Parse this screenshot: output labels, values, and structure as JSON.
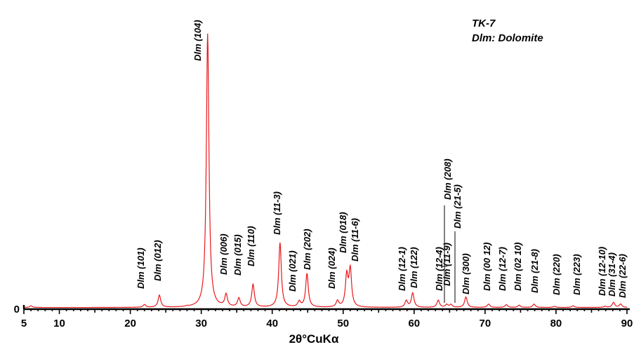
{
  "chart_data": {
    "type": "line",
    "title": "",
    "xlabel": "2θ°CuKα",
    "ylabel": "",
    "xlim": [
      5,
      90
    ],
    "ylim": [
      0,
      100
    ],
    "grid": false,
    "x_ticks": [
      5,
      10,
      20,
      30,
      40,
      50,
      60,
      70,
      80,
      90
    ],
    "y_ticks": [
      0
    ],
    "legend": {
      "placement": "top-right",
      "sample": "TK-7",
      "key": "Dlm: Dolomite"
    },
    "series": [
      {
        "color": "#e8191c",
        "baseline": 0.6,
        "peaks": [
          {
            "x": 6.0,
            "y": 1.2
          },
          {
            "x": 22.0,
            "y": 1.6
          },
          {
            "x": 24.1,
            "y": 5.0
          },
          {
            "x": 28.0,
            "y": 0.8
          },
          {
            "x": 30.9,
            "y": 100
          },
          {
            "x": 33.5,
            "y": 5.0
          },
          {
            "x": 35.3,
            "y": 3.8
          },
          {
            "x": 37.3,
            "y": 8.8
          },
          {
            "x": 41.1,
            "y": 24.0
          },
          {
            "x": 43.8,
            "y": 2.6
          },
          {
            "x": 44.9,
            "y": 12.8
          },
          {
            "x": 49.2,
            "y": 2.8
          },
          {
            "x": 50.5,
            "y": 11.8
          },
          {
            "x": 51.0,
            "y": 14.0
          },
          {
            "x": 58.9,
            "y": 3.0
          },
          {
            "x": 59.8,
            "y": 5.8
          },
          {
            "x": 63.4,
            "y": 3.2
          },
          {
            "x": 64.6,
            "y": 1.6
          },
          {
            "x": 65.2,
            "y": 1.6
          },
          {
            "x": 67.3,
            "y": 4.4
          },
          {
            "x": 70.5,
            "y": 1.8
          },
          {
            "x": 73.0,
            "y": 1.6
          },
          {
            "x": 74.8,
            "y": 1.4
          },
          {
            "x": 76.9,
            "y": 1.8
          },
          {
            "x": 79.8,
            "y": 1.0
          },
          {
            "x": 82.4,
            "y": 1.2
          },
          {
            "x": 86.9,
            "y": 1.0
          },
          {
            "x": 88.1,
            "y": 2.4
          },
          {
            "x": 89.1,
            "y": 1.8
          }
        ]
      }
    ],
    "annotations": [
      {
        "text": "Dlm (101)",
        "x": 22.0,
        "y": 1.6
      },
      {
        "text": "Dlm (012)",
        "x": 24.1,
        "y": 5.0
      },
      {
        "text": "Dlm (104)",
        "x": 30.9,
        "y": 100
      },
      {
        "text": "Dlm (006)",
        "x": 33.5,
        "y": 5.0
      },
      {
        "text": "Dlm (015)",
        "x": 35.3,
        "y": 3.8
      },
      {
        "text": "Dlm (110)",
        "x": 37.3,
        "y": 8.8
      },
      {
        "text": "Dlm (11-3)",
        "x": 41.1,
        "y": 24.0
      },
      {
        "text": "Dlm (021)",
        "x": 43.8,
        "y": 2.6
      },
      {
        "text": "Dlm (202)",
        "x": 44.9,
        "y": 12.8
      },
      {
        "text": "Dlm (024)",
        "x": 49.2,
        "y": 2.8
      },
      {
        "text": "Dlm (018)",
        "x": 50.5,
        "y": 11.8
      },
      {
        "text": "Dlm (11-6)",
        "x": 51.0,
        "y": 14.0
      },
      {
        "text": "Dlm (12-1)",
        "x": 58.9,
        "y": 3.0
      },
      {
        "text": "Dlm (122)",
        "x": 59.8,
        "y": 5.8
      },
      {
        "text": "Dlm (12-4)",
        "x": 63.4,
        "y": 3.2
      },
      {
        "text": "Dlm (208)",
        "x": 64.6,
        "y": 1.6
      },
      {
        "text": "Dlm (11-9)",
        "x": 65.2,
        "y": 1.6
      },
      {
        "text": "Dlm (21-5)",
        "x": 66.0,
        "y": 1.6
      },
      {
        "text": "Dlm (300)",
        "x": 67.3,
        "y": 4.4
      },
      {
        "text": "Dlm (00 12)",
        "x": 70.5,
        "y": 1.8
      },
      {
        "text": "Dlm (12-7)",
        "x": 73.0,
        "y": 1.6
      },
      {
        "text": "Dlm (02 10)",
        "x": 74.8,
        "y": 1.4
      },
      {
        "text": "Dlm (21-8)",
        "x": 76.9,
        "y": 1.8
      },
      {
        "text": "Dlm (220)",
        "x": 79.8,
        "y": 1.0
      },
      {
        "text": "Dlm (223)",
        "x": 82.4,
        "y": 1.2
      },
      {
        "text": "Dlm (12-10)",
        "x": 86.9,
        "y": 1.0
      },
      {
        "text": "Dlm (31-4)",
        "x": 88.1,
        "y": 2.4
      },
      {
        "text": "Dlm (22-6)",
        "x": 89.1,
        "y": 1.8
      }
    ]
  }
}
